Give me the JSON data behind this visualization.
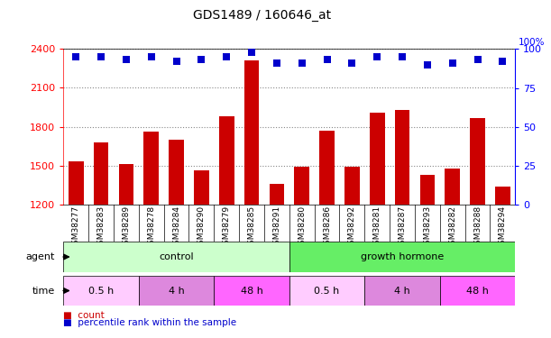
{
  "title": "GDS1489 / 160646_at",
  "samples": [
    "GSM38277",
    "GSM38283",
    "GSM38289",
    "GSM38278",
    "GSM38284",
    "GSM38290",
    "GSM38279",
    "GSM38285",
    "GSM38291",
    "GSM38280",
    "GSM38286",
    "GSM38292",
    "GSM38281",
    "GSM38287",
    "GSM38293",
    "GSM38282",
    "GSM38288",
    "GSM38294"
  ],
  "counts": [
    1530,
    1680,
    1510,
    1760,
    1700,
    1460,
    1880,
    2310,
    1360,
    1490,
    1770,
    1490,
    1910,
    1930,
    1430,
    1480,
    1870,
    1340
  ],
  "percentiles": [
    95,
    95,
    93,
    95,
    92,
    93,
    95,
    98,
    91,
    91,
    93,
    91,
    95,
    95,
    90,
    91,
    93,
    92
  ],
  "ylim_left": [
    1200,
    2400
  ],
  "ylim_right": [
    0,
    100
  ],
  "yticks_left": [
    1200,
    1500,
    1800,
    2100,
    2400
  ],
  "yticks_right": [
    0,
    25,
    50,
    75,
    100
  ],
  "bar_color": "#cc0000",
  "dot_color": "#0000cc",
  "bar_width": 0.6,
  "dot_size": 40,
  "dot_marker": "s",
  "agent_control_color": "#ccffcc",
  "agent_gh_color": "#66ee66",
  "time_colors": [
    "#ffccff",
    "#dd88dd",
    "#ff66ff"
  ],
  "time_labels": [
    "0.5 h",
    "4 h",
    "48 h"
  ],
  "control_label": "control",
  "gh_label": "growth hormone",
  "grid_color": "#888888",
  "background_color": "#ffffff",
  "tick_label_fontsize": 6.5,
  "title_fontsize": 10,
  "right_label": "100%"
}
